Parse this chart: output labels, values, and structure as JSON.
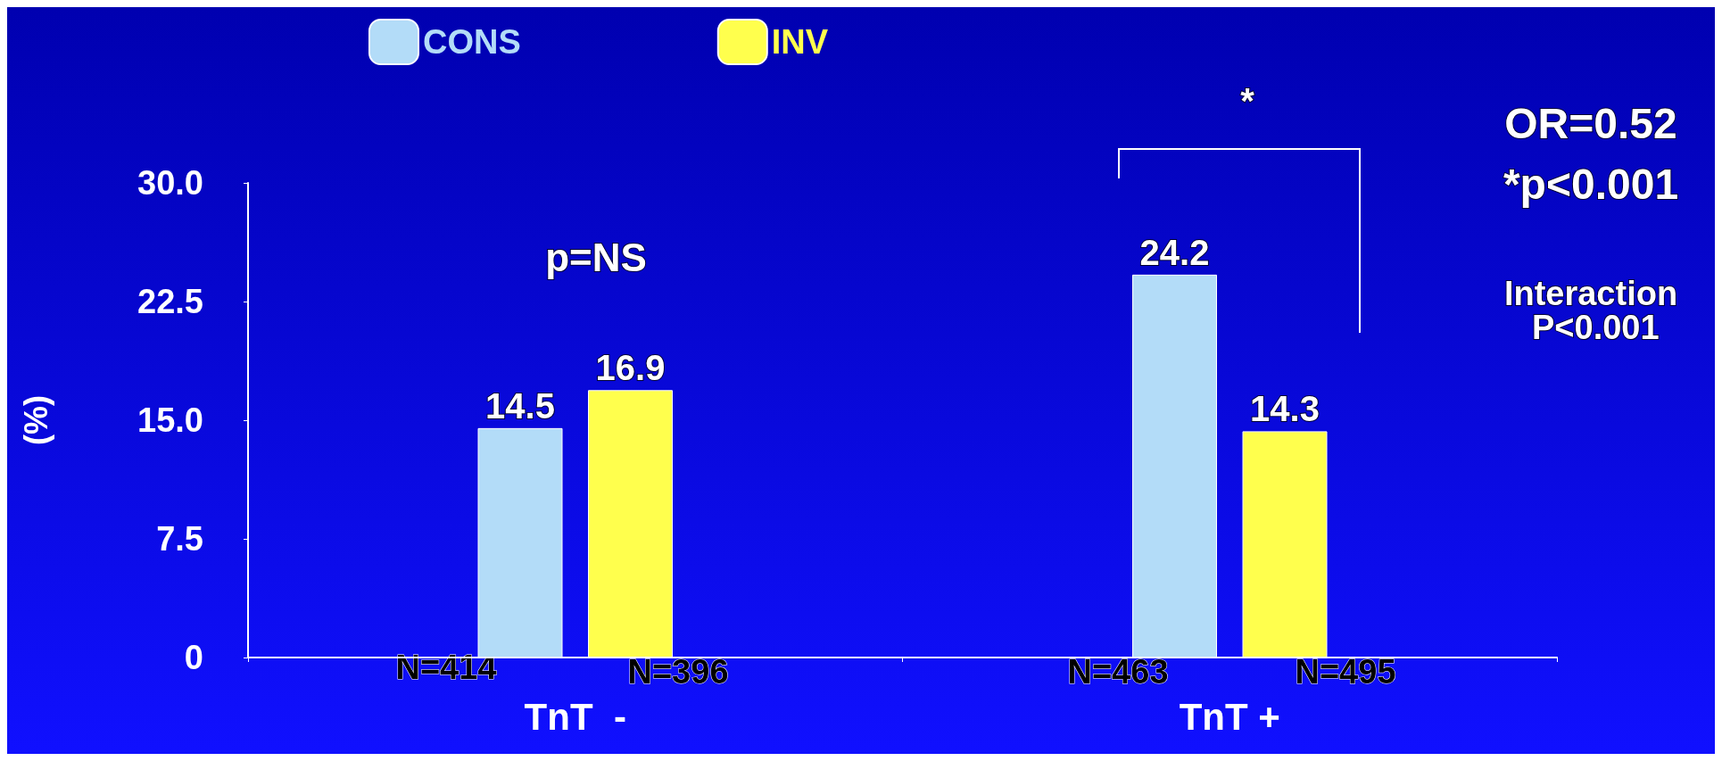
{
  "chart_data": {
    "type": "bar",
    "ylabel": "(%)",
    "categories": [
      "TnT  -",
      "TnT +"
    ],
    "series": [
      {
        "name": "CONS",
        "color": "#b3dcf8",
        "values": [
          14.5,
          24.2
        ]
      },
      {
        "name": "INV",
        "color": "#ffff4d",
        "values": [
          16.9,
          14.3
        ]
      }
    ],
    "ylim": [
      0,
      30
    ],
    "yticks": [
      0,
      {
        "value": 7.5,
        "label": "7.5"
      },
      {
        "value": 15,
        "label": "15.0"
      },
      {
        "value": 22.5,
        "label": "22.5"
      },
      {
        "value": 30,
        "label": "30.0"
      }
    ],
    "data_labels": true,
    "legend": "top",
    "grid": false,
    "annotations": [
      "p=NS",
      "*",
      "OR=0.52",
      "*p<0.001",
      "Interaction P<0.001",
      "N=414",
      "N=396",
      "N=463",
      "N=495"
    ]
  }
}
